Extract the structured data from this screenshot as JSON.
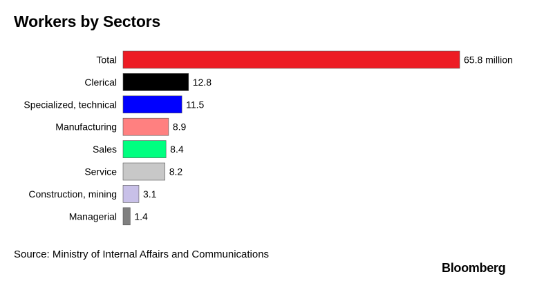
{
  "title": "Workers by Sectors",
  "source": "Source: Ministry of Internal Affairs and Communications",
  "logo": "Bloomberg",
  "chart_data": {
    "type": "bar",
    "orientation": "horizontal",
    "title": "Workers by Sectors",
    "unit": "million",
    "categories": [
      "Total",
      "Clerical",
      "Specialized, technical",
      "Manufacturing",
      "Sales",
      "Service",
      "Construction, mining",
      "Managerial"
    ],
    "values": [
      65.8,
      12.8,
      11.5,
      8.9,
      8.4,
      8.2,
      3.1,
      1.4
    ],
    "value_labels": [
      "65.8 million",
      "12.8",
      "11.5",
      "8.9",
      "8.4",
      "8.2",
      "3.1",
      "1.4"
    ],
    "colors": [
      "#ed1c24",
      "#000000",
      "#0000ff",
      "#ff8080",
      "#00ff80",
      "#c8c8c8",
      "#c8c0e8",
      "#808080"
    ],
    "grid": false,
    "legend": "none"
  }
}
